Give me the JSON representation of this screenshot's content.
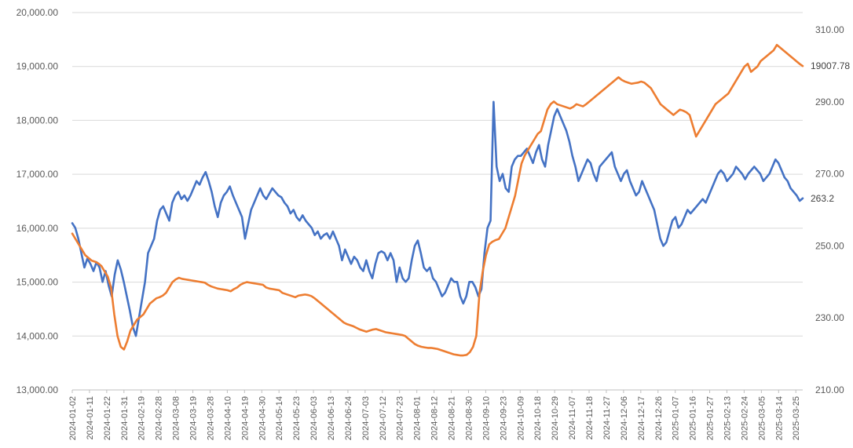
{
  "chart_data": {
    "type": "line",
    "title": "",
    "legend": "none",
    "grid": "horizontal",
    "y_left": {
      "range": [
        13000,
        20000
      ],
      "ticks": [
        13000,
        14000,
        15000,
        16000,
        17000,
        18000,
        19000,
        20000
      ],
      "tick_labels": [
        "13,000.00",
        "14,000.00",
        "15,000.00",
        "16,000.00",
        "17,000.00",
        "18,000.00",
        "19,000.00",
        "20,000.00"
      ]
    },
    "y_right": {
      "range": [
        210,
        315
      ],
      "ticks": [
        210,
        230,
        250,
        270,
        290,
        310
      ],
      "tick_labels": [
        "210.00",
        "230.00",
        "250.00",
        "270.00",
        "290.00",
        "310.00"
      ]
    },
    "x_tick_labels": [
      "2024-01-02",
      "2024-01-11",
      "2024-01-22",
      "2024-01-31",
      "2024-02-19",
      "2024-02-28",
      "2024-03-08",
      "2024-03-19",
      "2024-03-28",
      "2024-04-10",
      "2024-04-19",
      "2024-04-30",
      "2024-05-14",
      "2024-05-23",
      "2024-06-03",
      "2024-06-13",
      "2024-06-24",
      "2024-07-03",
      "2024-07-12",
      "2024-07-23",
      "2024-08-01",
      "2024-08-12",
      "2024-08-21",
      "2024-08-30",
      "2024-09-10",
      "2024-09-23",
      "2024-10-09",
      "2024-10-18",
      "2024-10-29",
      "2024-11-07",
      "2024-11-18",
      "2024-11-27",
      "2024-12-06",
      "2024-12-17",
      "2024-12-26",
      "2025-01-07",
      "2025-01-16",
      "2025-01-27",
      "2025-02-13",
      "2025-02-24",
      "2025-03-05",
      "2025-03-14",
      "2025-03-25"
    ],
    "series": [
      {
        "axis": "right",
        "color": "#4472c4",
        "end_label": "263.2",
        "values": [
          256.3,
          255.0,
          252.0,
          248.0,
          244.0,
          246.5,
          245.0,
          243.0,
          245.5,
          244.0,
          240.0,
          243.0,
          239.0,
          236.0,
          242.0,
          246.0,
          243.5,
          240.0,
          236.0,
          232.0,
          227.5,
          225.0,
          230.0,
          235.0,
          240.0,
          248.0,
          250.0,
          252.0,
          257.0,
          260.0,
          261.0,
          259.0,
          257.0,
          262.0,
          264.0,
          265.0,
          263.0,
          264.0,
          262.5,
          264.0,
          266.0,
          268.0,
          267.0,
          269.0,
          270.5,
          268.0,
          265.0,
          261.0,
          258.0,
          262.0,
          264.0,
          265.0,
          266.5,
          264.0,
          262.0,
          260.0,
          258.0,
          252.0,
          256.0,
          260.0,
          262.0,
          264.0,
          266.0,
          264.0,
          263.0,
          264.5,
          266.0,
          265.0,
          264.0,
          263.5,
          262.0,
          261.0,
          259.0,
          260.0,
          258.0,
          257.0,
          258.5,
          257.0,
          256.0,
          255.0,
          253.0,
          254.0,
          252.0,
          253.0,
          253.5,
          252.0,
          254.0,
          252.0,
          250.0,
          246.0,
          249.0,
          247.0,
          245.0,
          247.0,
          246.0,
          244.0,
          243.0,
          246.0,
          243.0,
          241.0,
          245.0,
          248.0,
          248.5,
          248.0,
          246.0,
          248.0,
          246.0,
          240.0,
          244.0,
          241.0,
          240.0,
          241.0,
          246.0,
          250.0,
          251.5,
          248.0,
          244.0,
          243.0,
          244.0,
          241.0,
          240.0,
          238.0,
          236.0,
          237.0,
          239.0,
          241.0,
          240.0,
          240.0,
          236.0,
          234.0,
          236.0,
          240.0,
          240.0,
          238.5,
          236.0,
          238.0,
          248.0,
          255.0,
          257.0,
          290.0,
          272.0,
          268.0,
          270.0,
          266.0,
          265.0,
          272.0,
          274.0,
          275.0,
          275.0,
          276.0,
          277.0,
          275.0,
          273.0,
          276.0,
          278.0,
          274.0,
          272.0,
          278.0,
          282.0,
          286.0,
          288.0,
          286.0,
          284.0,
          282.0,
          279.0,
          275.0,
          272.0,
          268.0,
          270.0,
          272.0,
          274.0,
          273.0,
          270.0,
          268.0,
          272.0,
          273.0,
          274.0,
          275.0,
          276.0,
          272.0,
          270.0,
          268.0,
          270.0,
          271.0,
          268.0,
          266.0,
          264.0,
          265.0,
          268.0,
          266.0,
          264.0,
          262.0,
          260.0,
          256.0,
          252.0,
          250.0,
          251.0,
          254.0,
          257.0,
          258.0,
          255.0,
          256.0,
          258.0,
          260.0,
          259.0,
          260.0,
          261.0,
          262.0,
          263.0,
          262.0,
          264.0,
          266.0,
          268.0,
          270.0,
          271.0,
          270.0,
          268.0,
          269.0,
          270.0,
          272.0,
          271.0,
          270.0,
          268.5,
          270.0,
          271.0,
          272.0,
          271.0,
          270.0,
          268.0,
          269.0,
          270.0,
          272.0,
          274.0,
          273.0,
          271.0,
          269.0,
          268.0,
          266.0,
          265.0,
          264.0,
          262.5,
          263.2
        ]
      },
      {
        "axis": "left",
        "color": "#ed7d31",
        "end_label": "19007.78",
        "values": [
          15900,
          15800,
          15700,
          15600,
          15500,
          15450,
          15400,
          15380,
          15350,
          15300,
          15200,
          15100,
          14900,
          14400,
          14000,
          13800,
          13750,
          13900,
          14100,
          14200,
          14300,
          14350,
          14400,
          14500,
          14600,
          14650,
          14700,
          14720,
          14750,
          14800,
          14900,
          15000,
          15050,
          15080,
          15060,
          15050,
          15040,
          15030,
          15020,
          15010,
          15000,
          14990,
          14950,
          14920,
          14900,
          14880,
          14870,
          14860,
          14850,
          14830,
          14870,
          14900,
          14950,
          14980,
          15000,
          14990,
          14980,
          14970,
          14960,
          14950,
          14900,
          14880,
          14870,
          14860,
          14850,
          14800,
          14780,
          14760,
          14740,
          14720,
          14750,
          14760,
          14770,
          14760,
          14740,
          14700,
          14650,
          14600,
          14550,
          14500,
          14450,
          14400,
          14350,
          14300,
          14250,
          14220,
          14200,
          14180,
          14150,
          14120,
          14100,
          14080,
          14100,
          14120,
          14130,
          14110,
          14090,
          14070,
          14060,
          14050,
          14040,
          14030,
          14020,
          14000,
          13950,
          13900,
          13850,
          13820,
          13800,
          13790,
          13780,
          13780,
          13770,
          13760,
          13740,
          13720,
          13700,
          13680,
          13660,
          13650,
          13640,
          13640,
          13650,
          13700,
          13800,
          14000,
          14800,
          15200,
          15500,
          15700,
          15750,
          15780,
          15800,
          15900,
          16000,
          16200,
          16400,
          16600,
          16900,
          17200,
          17350,
          17450,
          17550,
          17650,
          17750,
          17800,
          18000,
          18200,
          18300,
          18350,
          18300,
          18280,
          18260,
          18240,
          18220,
          18250,
          18300,
          18280,
          18260,
          18300,
          18350,
          18400,
          18450,
          18500,
          18550,
          18600,
          18650,
          18700,
          18750,
          18800,
          18750,
          18720,
          18700,
          18680,
          18690,
          18700,
          18720,
          18700,
          18650,
          18600,
          18500,
          18400,
          18300,
          18250,
          18200,
          18150,
          18100,
          18150,
          18200,
          18180,
          18150,
          18100,
          17900,
          17700,
          17800,
          17900,
          18000,
          18100,
          18200,
          18300,
          18350,
          18400,
          18450,
          18500,
          18600,
          18700,
          18800,
          18900,
          19000,
          19050,
          18900,
          18950,
          19000,
          19100,
          19150,
          19200,
          19250,
          19300,
          19400,
          19350,
          19300,
          19250,
          19200,
          19150,
          19100,
          19050,
          19007.78
        ]
      }
    ]
  }
}
